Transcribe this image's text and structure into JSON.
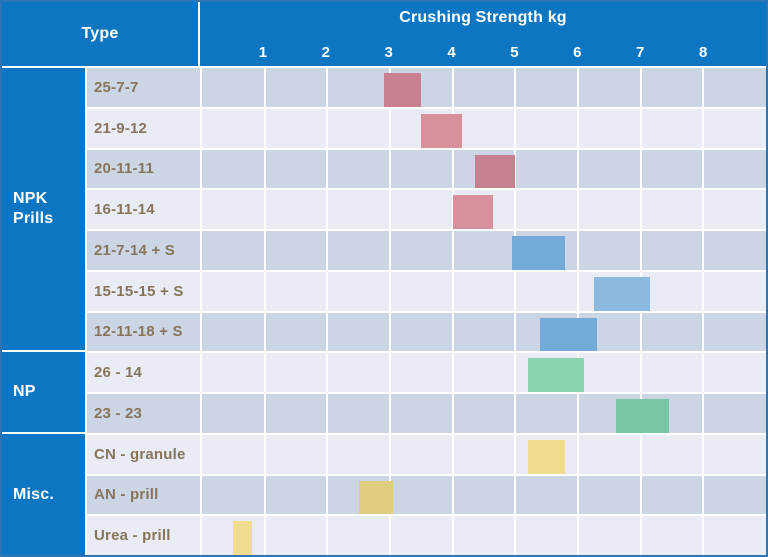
{
  "header": {
    "type_label": "Type",
    "chart_title": "Crushing Strength kg",
    "ticks": [
      "1",
      "2",
      "3",
      "4",
      "5",
      "6",
      "7",
      "8"
    ]
  },
  "colors": {
    "header_blue": "#0d76c2",
    "outer_border": "#2e75b6",
    "grid_line": "#ffffff",
    "row_bg_dark": "#ccd5e4",
    "row_bg_light": "#e9ecf4",
    "label_text": "#86755c",
    "header_text": "#ffffff",
    "bar": {
      "red": {
        "on_dark": "#c6808f",
        "on_light": "#d8909a"
      },
      "blue": {
        "on_dark": "#74aad8",
        "on_light": "#8bbade"
      },
      "green": {
        "on_dark": "#76c5a3",
        "on_light": "#8bd4ae"
      },
      "yellow": {
        "on_dark": "#e2cc80",
        "on_light": "#f2dc90"
      }
    }
  },
  "chart_data": {
    "type": "bar",
    "subtype": "horizontal-floating-range",
    "title": "Crushing Strength kg",
    "unit": "kg",
    "xlim": [
      0,
      9
    ],
    "xticks": [
      1,
      2,
      3,
      4,
      5,
      6,
      7,
      8
    ],
    "grid": true,
    "legend": false,
    "groups": [
      {
        "name": "NPK Prills",
        "rows": 7
      },
      {
        "name": "NP",
        "rows": 2
      },
      {
        "name": "Misc.",
        "rows": 3
      }
    ],
    "series": [
      {
        "category": "25-7-7",
        "group": "NPK Prills",
        "color": "red",
        "range": [
          2.9,
          3.5
        ]
      },
      {
        "category": "21-9-12",
        "group": "NPK Prills",
        "color": "red",
        "range": [
          3.5,
          4.15
        ]
      },
      {
        "category": "20-11-11",
        "group": "NPK Prills",
        "color": "red",
        "range": [
          4.35,
          5.0
        ]
      },
      {
        "category": "16-11-14",
        "group": "NPK Prills",
        "color": "red",
        "range": [
          4.0,
          4.65
        ]
      },
      {
        "category": "21-7-14 + S",
        "group": "NPK Prills",
        "color": "blue",
        "range": [
          4.95,
          5.8
        ]
      },
      {
        "category": "15-15-15 + S",
        "group": "NPK Prills",
        "color": "blue",
        "range": [
          6.25,
          7.15
        ]
      },
      {
        "category": "12-11-18 + S",
        "group": "NPK Prills",
        "color": "blue",
        "range": [
          5.4,
          6.3
        ]
      },
      {
        "category": "26 - 14",
        "group": "NP",
        "color": "green",
        "range": [
          5.2,
          6.1
        ]
      },
      {
        "category": "23 - 23",
        "group": "NP",
        "color": "green",
        "range": [
          6.6,
          7.45
        ]
      },
      {
        "category": "CN - granule",
        "group": "Misc.",
        "color": "yellow",
        "range": [
          5.2,
          5.8
        ]
      },
      {
        "category": "AN - prill",
        "group": "Misc.",
        "color": "yellow",
        "range": [
          2.5,
          3.05
        ]
      },
      {
        "category": "Urea - prill",
        "group": "Misc.",
        "color": "yellow",
        "range": [
          0.5,
          0.8
        ]
      }
    ]
  }
}
